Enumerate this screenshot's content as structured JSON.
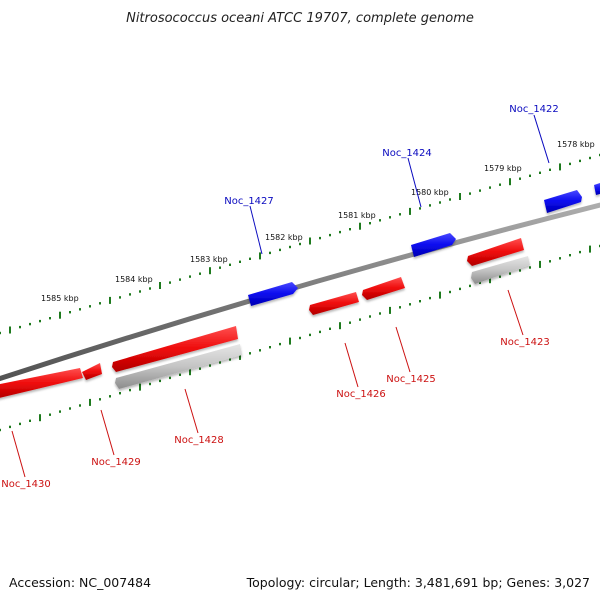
{
  "title": "Nitrosococcus oceani ATCC 19707, complete genome",
  "footer": {
    "accession": "Accession: NC_007484",
    "summary": "Topology: circular; Length: 3,481,691 bp; Genes: 3,027"
  },
  "colors": {
    "backbone": "#7f7f7f",
    "forward_gene": "#0a0aee",
    "reverse_gene": "#ee0a0a",
    "rna_feature": "#bdbdbd",
    "tick": "#1e7a1e",
    "forward_label": "#0a0abf",
    "reverse_label": "#cc1111"
  },
  "scale_labels": [
    "1578 kbp",
    "1579 kbp",
    "1580 kbp",
    "1581 kbp",
    "1582 kbp",
    "1583 kbp",
    "1584 kbp",
    "1585 kbp"
  ],
  "forward_genes": [
    "Noc_1422",
    "Noc_1424",
    "Noc_1427"
  ],
  "reverse_genes": [
    "Noc_1423",
    "Noc_1425",
    "Noc_1426",
    "Noc_1428",
    "Noc_1429",
    "Noc_1430"
  ]
}
